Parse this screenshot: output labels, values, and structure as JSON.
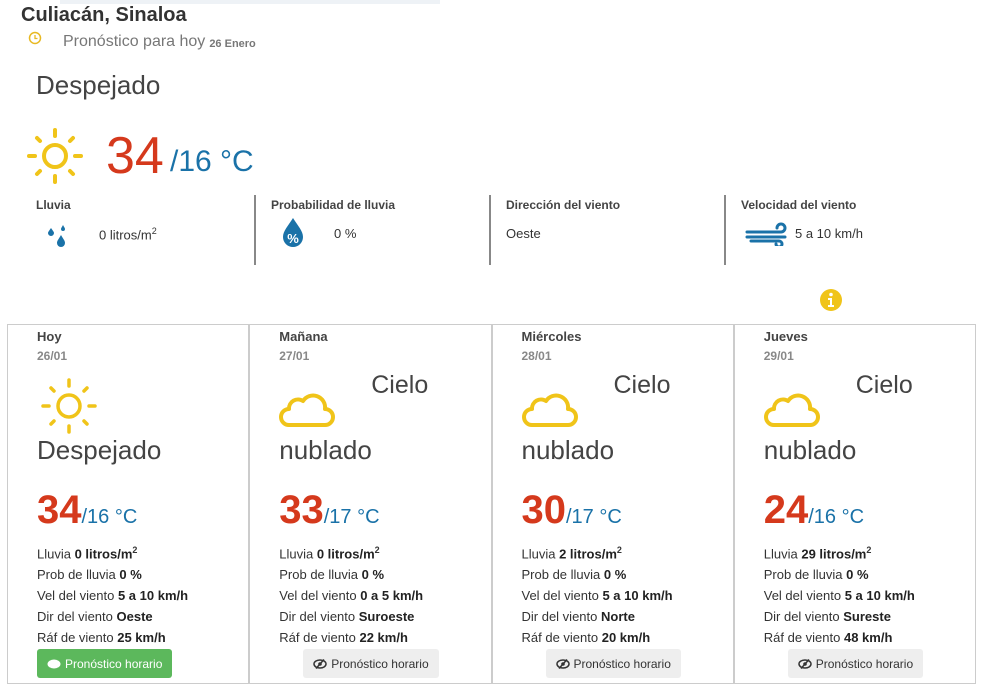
{
  "header": {
    "location": "Culiacán, Sinaloa",
    "subtitle": "Pronóstico para hoy",
    "date": "26 Enero",
    "icon": "clock-icon"
  },
  "today": {
    "condition": "Despejado",
    "icon": "sun-icon",
    "max": "34",
    "min": "/16 °C",
    "stats": [
      {
        "label": "Lluvia",
        "value": "0 litros/m",
        "sup": "2",
        "icon": "rain-drops-icon"
      },
      {
        "label": "Probabilidad de lluvia",
        "value": "0 %",
        "icon": "percent-drop-icon"
      },
      {
        "label": "Dirección del viento",
        "value": "Oeste"
      },
      {
        "label": "Velocidad del viento",
        "value": "5 a 10 km/h",
        "icon": "wind-icon"
      }
    ]
  },
  "colors": {
    "max": "#d5391c",
    "min": "#1a72a8",
    "icon": "#f0c419",
    "green": "#5cb85c"
  },
  "labels": {
    "lluvia": "Lluvia",
    "prob": "Prob de lluvia",
    "vel": "Vel del viento",
    "dir": "Dir del viento",
    "raf": "Ráf de viento",
    "button": "Pronóstico horario"
  },
  "days": [
    {
      "day": "Hoy",
      "date": "26/01",
      "icon": "sun-icon",
      "cond1": "",
      "cond2": "Despejado",
      "max": "34",
      "min": "/16 °C",
      "rain": "0 litros/m",
      "prob": "0 %",
      "vel": "5 a 10 km/h",
      "dir": "Oeste",
      "raf": "25 km/h",
      "active": true
    },
    {
      "day": "Mañana",
      "date": "27/01",
      "icon": "cloud-icon",
      "cond1": "Cielo",
      "cond2": "nublado",
      "max": "33",
      "min": "/17 °C",
      "rain": "0 litros/m",
      "prob": "0 %",
      "vel": "0 a 5 km/h",
      "dir": "Suroeste",
      "raf": "22 km/h",
      "active": false
    },
    {
      "day": "Miércoles",
      "date": "28/01",
      "icon": "cloud-icon",
      "cond1": "Cielo",
      "cond2": "nublado",
      "max": "30",
      "min": "/17 °C",
      "rain": "2 litros/m",
      "prob": "0 %",
      "vel": "5 a 10 km/h",
      "dir": "Norte",
      "raf": "20 km/h",
      "active": false
    },
    {
      "day": "Jueves",
      "date": "29/01",
      "icon": "cloud-icon",
      "cond1": "Cielo",
      "cond2": "nublado",
      "max": "24",
      "min": "/16 °C",
      "rain": "29 litros/m",
      "prob": "0 %",
      "vel": "5 a 10 km/h",
      "dir": "Sureste",
      "raf": "48 km/h",
      "active": false
    }
  ]
}
